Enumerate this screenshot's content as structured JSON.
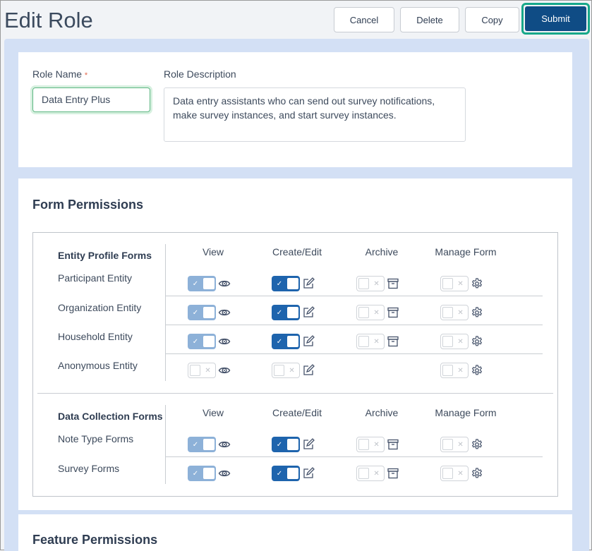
{
  "header": {
    "title": "Edit Role",
    "buttons": {
      "cancel": "Cancel",
      "delete": "Delete",
      "copy": "Copy",
      "submit": "Submit"
    }
  },
  "role": {
    "name_label": "Role Name",
    "required_mark": "*",
    "name_value": "Data Entry Plus",
    "desc_label": "Role Description",
    "desc_value": "Data entry assistants who can send out survey notifications, make survey instances, and start survey instances."
  },
  "form_permissions": {
    "title": "Form Permissions",
    "columns": [
      "View",
      "Create/Edit",
      "Archive",
      "Manage Form"
    ],
    "sections": [
      {
        "title": "Entity Profile Forms",
        "rows": [
          {
            "label": "Participant Entity",
            "states": [
              "on-disabled",
              "on",
              "off",
              "off"
            ]
          },
          {
            "label": "Organization Entity",
            "states": [
              "on-disabled",
              "on",
              "off",
              "off"
            ]
          },
          {
            "label": "Household Entity",
            "states": [
              "on-disabled",
              "on",
              "off",
              "off"
            ]
          },
          {
            "label": "Anonymous Entity",
            "states": [
              "off",
              "off",
              null,
              "off"
            ]
          }
        ]
      },
      {
        "title": "Data Collection Forms",
        "rows": [
          {
            "label": "Note Type Forms",
            "states": [
              "on-disabled",
              "on",
              "off",
              "off"
            ]
          },
          {
            "label": "Survey Forms",
            "states": [
              "on-disabled",
              "on",
              "off",
              "off"
            ]
          }
        ]
      }
    ],
    "icons": [
      "eye-icon",
      "edit-icon",
      "archive-icon",
      "gear-icon"
    ]
  },
  "feature_permissions": {
    "title": "Feature Permissions"
  },
  "colors": {
    "primary": "#0f4c85",
    "toggle_on": "#1e64ad",
    "toggle_on_disabled": "#8db1d8",
    "focus": "#17a88a",
    "background": "#d3e0f5"
  }
}
